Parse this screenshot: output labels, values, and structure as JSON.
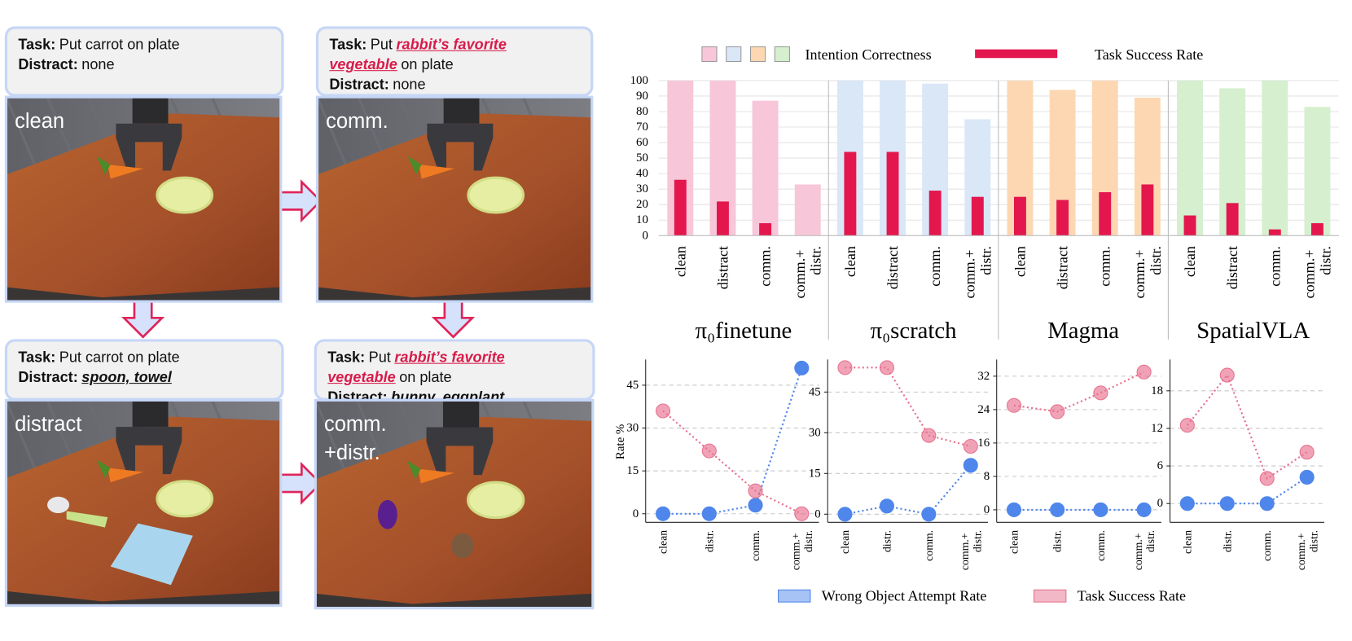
{
  "panels": [
    {
      "task_label": "Task:",
      "task": [
        {
          "text": "Put carrot on plate"
        }
      ],
      "distract_label": "Distract:",
      "distract": "none",
      "scene": [
        "clean"
      ]
    },
    {
      "task_label": "Task:",
      "task": [
        {
          "text": "Put"
        },
        {
          "text": "rabbit’s favorite vegetable",
          "emphasis": true
        },
        {
          "text": "on plate"
        }
      ],
      "distract_label": "Distract:",
      "distract": "none",
      "scene": [
        "comm."
      ]
    },
    {
      "task_label": "Task:",
      "task": [
        {
          "text": "Put carrot on plate"
        }
      ],
      "distract_label": "Distract:",
      "distract": "spoon, towel",
      "distract_emphasis": true,
      "scene": [
        "distract"
      ]
    },
    {
      "task_label": "Task:",
      "task": [
        {
          "text": "Put"
        },
        {
          "text": "rabbit’s favorite vegetable",
          "emphasis": true
        },
        {
          "text": "on plate"
        }
      ],
      "distract_label": "Distract:",
      "distract": "bunny, eggplant",
      "distract_emphasis": true,
      "scene": [
        "comm.",
        "+distr."
      ]
    }
  ],
  "chart_data": [
    {
      "type": "bar",
      "groups": [
        "π₀finetune",
        "π₀scratch",
        "Magma",
        "SpatialVLA"
      ],
      "categories": [
        "clean",
        "distract",
        "comm.",
        "comm.+ distr.",
        "clean",
        "distract",
        "comm.",
        "comm.+ distr.",
        "clean",
        "distract",
        "comm.",
        "comm.+ distr.",
        "clean",
        "distract",
        "comm.",
        "comm.+ distr."
      ],
      "series": [
        {
          "name": "Intention Correctness",
          "color": [
            "#f8c6d9",
            "#d9e7f7",
            "#fdd7b2",
            "#d5efcf"
          ],
          "values": [
            100,
            100,
            87,
            33,
            100,
            100,
            98,
            75,
            100,
            94,
            100,
            89,
            100,
            95,
            100,
            83
          ]
        },
        {
          "name": "Task Success Rate",
          "color": "#e3174d",
          "values": [
            36,
            22,
            8,
            0,
            54,
            54,
            29,
            25,
            25,
            23,
            28,
            33,
            13,
            21,
            4,
            8
          ]
        }
      ],
      "ylim": [
        0,
        100
      ],
      "yticks": [
        0,
        10,
        20,
        30,
        40,
        50,
        60,
        70,
        80,
        90,
        100
      ],
      "grid": true
    },
    {
      "type": "line",
      "ylabel": "Rate %",
      "categories": [
        "clean",
        "distr.",
        "comm.",
        "comm.+ distr."
      ],
      "series": [
        {
          "name": "Wrong Object Attempt Rate",
          "color": "#4f86ec",
          "values": [
            0,
            0,
            3,
            51
          ]
        },
        {
          "name": "Task Success Rate",
          "color": "#e8718f",
          "values": [
            36,
            22,
            8,
            0
          ]
        }
      ],
      "ylim": [
        -3,
        54
      ],
      "yticks": [
        0,
        15,
        30,
        45
      ],
      "grid": true
    },
    {
      "type": "line",
      "categories": [
        "clean",
        "distr.",
        "comm.",
        "comm.+ distr."
      ],
      "series": [
        {
          "color": "#4f86ec",
          "values": [
            0,
            3,
            0,
            18
          ]
        },
        {
          "color": "#e8718f",
          "values": [
            54,
            54,
            29,
            25
          ]
        }
      ],
      "ylim": [
        -3,
        57
      ],
      "yticks": [
        0,
        15,
        30,
        45
      ],
      "grid": true
    },
    {
      "type": "line",
      "categories": [
        "clean",
        "distr.",
        "comm.",
        "comm.+ distr."
      ],
      "series": [
        {
          "color": "#4f86ec",
          "values": [
            0,
            0,
            0,
            0
          ]
        },
        {
          "color": "#e8718f",
          "values": [
            25,
            23.5,
            28,
            33
          ]
        }
      ],
      "ylim": [
        -3,
        36
      ],
      "yticks": [
        0,
        8,
        16,
        24,
        32
      ],
      "grid": true
    },
    {
      "type": "line",
      "categories": [
        "clean",
        "distr.",
        "comm.",
        "comm.+ distr."
      ],
      "series": [
        {
          "color": "#4f86ec",
          "values": [
            0,
            0,
            0,
            4.2
          ]
        },
        {
          "color": "#e8718f",
          "values": [
            12.5,
            20.5,
            4,
            8.2
          ]
        }
      ],
      "ylim": [
        -3,
        23
      ],
      "yticks": [
        0,
        6,
        12,
        18
      ],
      "grid": true
    }
  ]
}
